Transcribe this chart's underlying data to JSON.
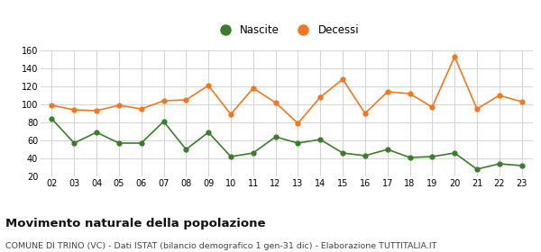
{
  "years": [
    "02",
    "03",
    "04",
    "05",
    "06",
    "07",
    "08",
    "09",
    "10",
    "11",
    "12",
    "13",
    "14",
    "15",
    "16",
    "17",
    "18",
    "19",
    "20",
    "21",
    "22",
    "23"
  ],
  "nascite": [
    84,
    57,
    69,
    57,
    57,
    81,
    50,
    69,
    42,
    46,
    64,
    57,
    61,
    46,
    43,
    50,
    41,
    42,
    46,
    28,
    34,
    32
  ],
  "decessi": [
    99,
    94,
    93,
    99,
    95,
    104,
    105,
    121,
    89,
    118,
    102,
    79,
    108,
    128,
    90,
    114,
    112,
    97,
    153,
    95,
    110,
    103
  ],
  "nascite_color": "#3a7d2c",
  "decessi_color": "#f07820",
  "bg_color": "#ffffff",
  "grid_color": "#cccccc",
  "ylim": [
    20,
    160
  ],
  "yticks": [
    20,
    40,
    60,
    80,
    100,
    120,
    140,
    160
  ],
  "title": "Movimento naturale della popolazione",
  "subtitle": "COMUNE DI TRINO (VC) - Dati ISTAT (bilancio demografico 1 gen-31 dic) - Elaborazione TUTTITALIA.IT",
  "legend_nascite": "Nascite",
  "legend_decessi": "Decessi",
  "title_fontsize": 9.5,
  "subtitle_fontsize": 6.8,
  "marker_size": 3.5,
  "linewidth": 1.2
}
